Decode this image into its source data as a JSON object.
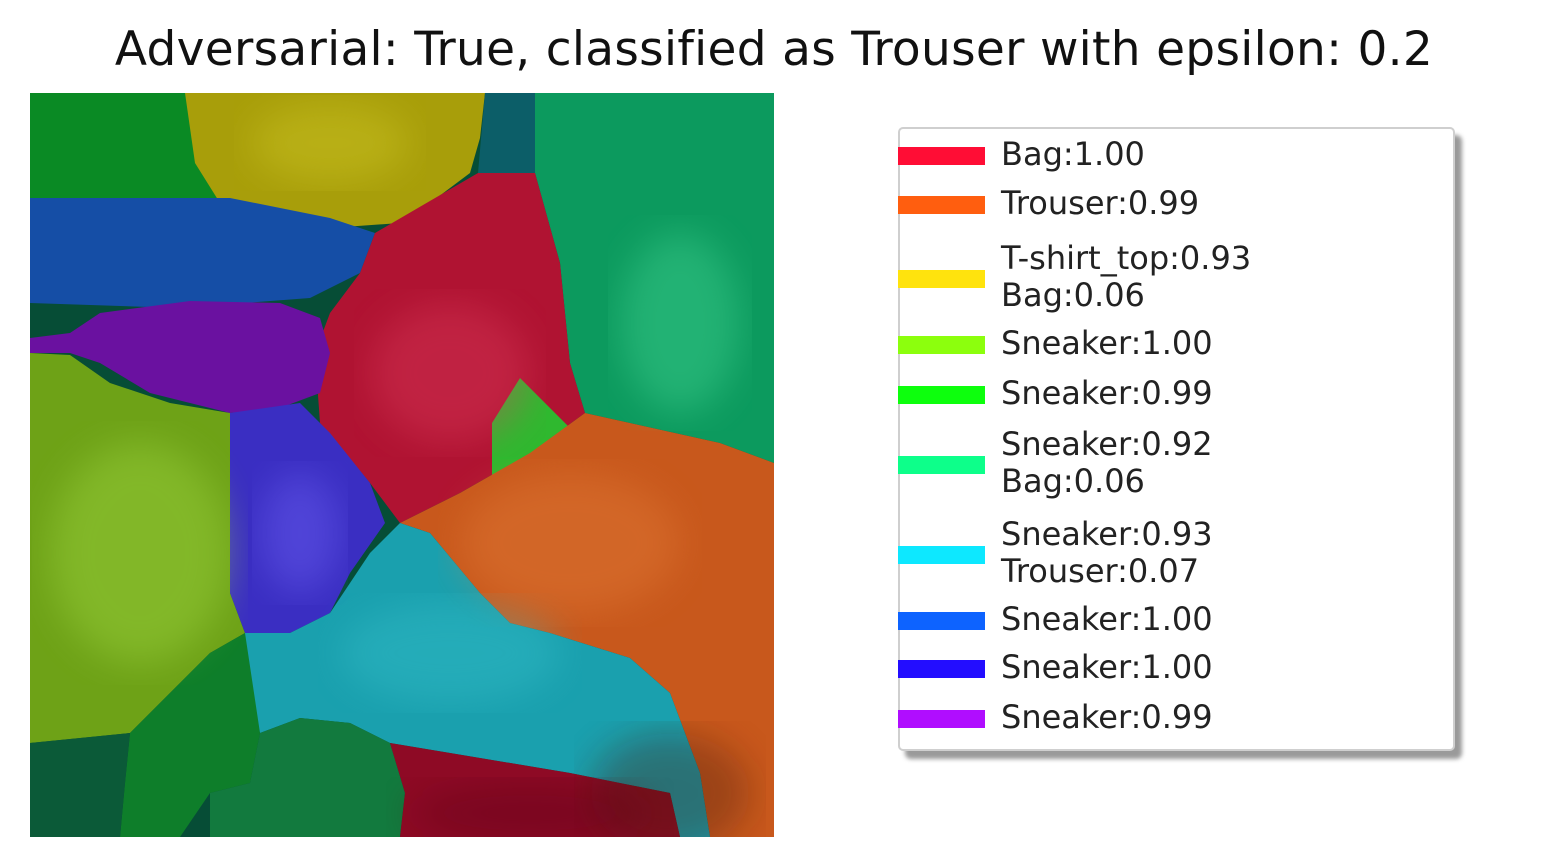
{
  "title": "Adversarial: True, classified as Trouser with epsilon: 0.2",
  "legend": {
    "items": [
      {
        "color": "#ff0d35",
        "lines": [
          "Bag:1.00"
        ]
      },
      {
        "color": "#ff5e0f",
        "lines": [
          "Trouser:0.99"
        ]
      },
      {
        "color": "#ffe30d",
        "lines": [
          "T-shirt_top:0.93",
          "Bag:0.06"
        ]
      },
      {
        "color": "#8cff0d",
        "lines": [
          "Sneaker:1.00"
        ]
      },
      {
        "color": "#0dff0d",
        "lines": [
          "Sneaker:0.99"
        ]
      },
      {
        "color": "#0dff8a",
        "lines": [
          "Sneaker:0.92",
          "Bag:0.06"
        ]
      },
      {
        "color": "#0de8ff",
        "lines": [
          "Sneaker:0.93",
          "Trouser:0.07"
        ]
      },
      {
        "color": "#0d63ff",
        "lines": [
          "Sneaker:1.00"
        ]
      },
      {
        "color": "#230dff",
        "lines": [
          "Sneaker:1.00"
        ]
      },
      {
        "color": "#b00dff",
        "lines": [
          "Sneaker:0.99"
        ]
      }
    ]
  },
  "segments": {
    "background": "#064d36",
    "regions": [
      {
        "name": "green-top-left-region",
        "color": "#0a8a24"
      },
      {
        "name": "olive-top-region",
        "color": "#a89e0a"
      },
      {
        "name": "teal-top-region",
        "color": "#0c5e68"
      },
      {
        "name": "right-green-region",
        "color": "#0c9a5e"
      },
      {
        "name": "blue-band-region",
        "color": "#154ea6"
      },
      {
        "name": "red-center-region",
        "color": "#b01332"
      },
      {
        "name": "purple-left-region",
        "color": "#6a11a0"
      },
      {
        "name": "lime-left-region",
        "color": "#6ea217"
      },
      {
        "name": "indigo-center-region",
        "color": "#3a2ec2"
      },
      {
        "name": "small-green-wedge-region",
        "color": "#2fb82f"
      },
      {
        "name": "orange-right-region",
        "color": "#c8581c"
      },
      {
        "name": "cyan-bottom-region",
        "color": "#1aa0ae"
      },
      {
        "name": "green-bottom-left-region",
        "color": "#0e7e2a"
      },
      {
        "name": "green-bottom-middle-region",
        "color": "#127a3e"
      },
      {
        "name": "red-bottom-region",
        "color": "#8e0a25"
      },
      {
        "name": "dark-green-corner-region",
        "color": "#0b5a38"
      }
    ]
  }
}
